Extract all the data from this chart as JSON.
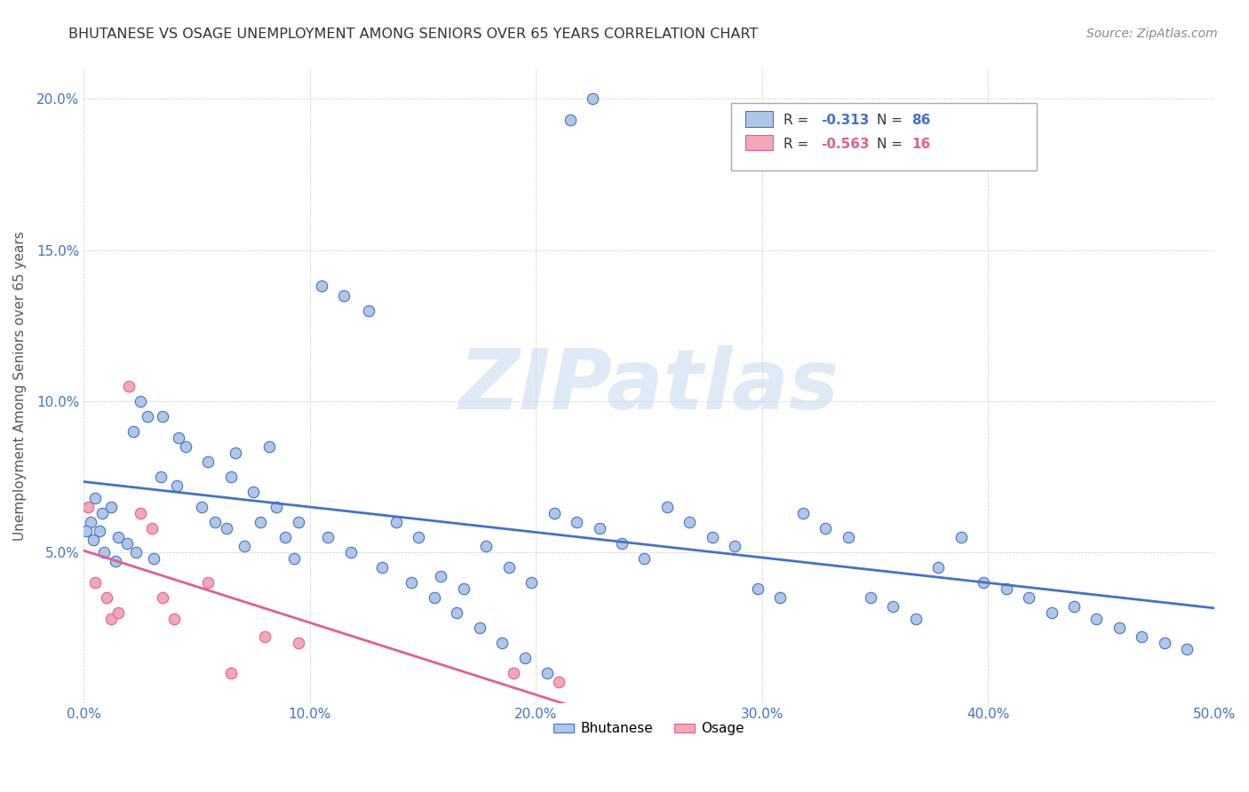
{
  "title": "BHUTANESE VS OSAGE UNEMPLOYMENT AMONG SENIORS OVER 65 YEARS CORRELATION CHART",
  "source": "Source: ZipAtlas.com",
  "ylabel": "Unemployment Among Seniors over 65 years",
  "xlim": [
    0.0,
    0.5
  ],
  "ylim": [
    0.0,
    0.21
  ],
  "xticks": [
    0.0,
    0.1,
    0.2,
    0.3,
    0.4,
    0.5
  ],
  "yticks": [
    0.0,
    0.05,
    0.1,
    0.15,
    0.2
  ],
  "xticklabels": [
    "0.0%",
    "10.0%",
    "20.0%",
    "30.0%",
    "40.0%",
    "50.0%"
  ],
  "yticklabels": [
    "",
    "5.0%",
    "10.0%",
    "15.0%",
    "20.0%"
  ],
  "blue_R": -0.313,
  "blue_N": 86,
  "pink_R": -0.563,
  "pink_N": 16,
  "blue_face": "#aec6e8",
  "blue_edge": "#4472c4",
  "pink_face": "#f4a7b9",
  "pink_edge": "#e06090",
  "watermark": "ZIPatlas",
  "blue_x": [
    0.022,
    0.045,
    0.067,
    0.078,
    0.089,
    0.028,
    0.034,
    0.012,
    0.005,
    0.008,
    0.003,
    0.007,
    0.015,
    0.019,
    0.023,
    0.031,
    0.041,
    0.052,
    0.058,
    0.063,
    0.071,
    0.082,
    0.093,
    0.105,
    0.115,
    0.126,
    0.138,
    0.148,
    0.158,
    0.168,
    0.178,
    0.188,
    0.198,
    0.208,
    0.218,
    0.228,
    0.238,
    0.248,
    0.258,
    0.268,
    0.278,
    0.288,
    0.298,
    0.308,
    0.318,
    0.328,
    0.338,
    0.348,
    0.358,
    0.368,
    0.378,
    0.388,
    0.398,
    0.408,
    0.418,
    0.428,
    0.438,
    0.448,
    0.458,
    0.468,
    0.478,
    0.488,
    0.001,
    0.004,
    0.009,
    0.014,
    0.025,
    0.035,
    0.042,
    0.055,
    0.065,
    0.075,
    0.085,
    0.095,
    0.108,
    0.118,
    0.132,
    0.145,
    0.155,
    0.165,
    0.175,
    0.185,
    0.195,
    0.205,
    0.215,
    0.225
  ],
  "blue_y": [
    0.09,
    0.085,
    0.083,
    0.06,
    0.055,
    0.095,
    0.075,
    0.065,
    0.068,
    0.063,
    0.06,
    0.057,
    0.055,
    0.053,
    0.05,
    0.048,
    0.072,
    0.065,
    0.06,
    0.058,
    0.052,
    0.085,
    0.048,
    0.138,
    0.135,
    0.13,
    0.06,
    0.055,
    0.042,
    0.038,
    0.052,
    0.045,
    0.04,
    0.063,
    0.06,
    0.058,
    0.053,
    0.048,
    0.065,
    0.06,
    0.055,
    0.052,
    0.038,
    0.035,
    0.063,
    0.058,
    0.055,
    0.035,
    0.032,
    0.028,
    0.045,
    0.055,
    0.04,
    0.038,
    0.035,
    0.03,
    0.032,
    0.028,
    0.025,
    0.022,
    0.02,
    0.018,
    0.057,
    0.054,
    0.05,
    0.047,
    0.1,
    0.095,
    0.088,
    0.08,
    0.075,
    0.07,
    0.065,
    0.06,
    0.055,
    0.05,
    0.045,
    0.04,
    0.035,
    0.03,
    0.025,
    0.02,
    0.015,
    0.01,
    0.193,
    0.2
  ],
  "pink_x": [
    0.002,
    0.005,
    0.01,
    0.012,
    0.015,
    0.02,
    0.025,
    0.03,
    0.035,
    0.04,
    0.055,
    0.065,
    0.08,
    0.095,
    0.19,
    0.21
  ],
  "pink_y": [
    0.065,
    0.04,
    0.035,
    0.028,
    0.03,
    0.105,
    0.063,
    0.058,
    0.035,
    0.028,
    0.04,
    0.01,
    0.022,
    0.02,
    0.01,
    0.007
  ]
}
